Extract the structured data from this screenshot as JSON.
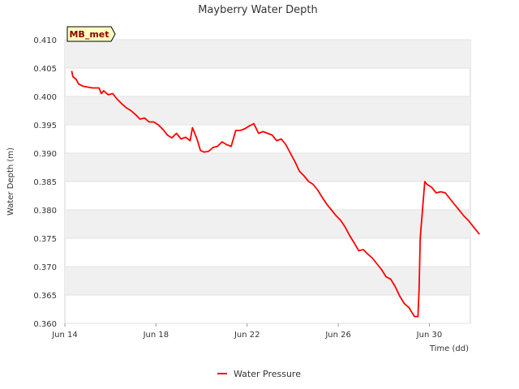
{
  "chart_data": {
    "type": "line",
    "title": "Mayberry Water Depth",
    "xlabel": "Time (dd)",
    "ylabel": "Water Depth (m)",
    "badge": "MB_met",
    "ylim": [
      0.36,
      0.41
    ],
    "yticks": [
      "0.360",
      "0.365",
      "0.370",
      "0.375",
      "0.380",
      "0.385",
      "0.390",
      "0.395",
      "0.400",
      "0.405",
      "0.410"
    ],
    "xlim": [
      14.0,
      31.8
    ],
    "xticks": [
      {
        "label": "Jun 14",
        "day": 14
      },
      {
        "label": "Jun 18",
        "day": 18
      },
      {
        "label": "Jun 22",
        "day": 22
      },
      {
        "label": "Jun 26",
        "day": 26
      },
      {
        "label": "Jun 30",
        "day": 30
      }
    ],
    "grid": "horizontal bands",
    "legend": "bottom-center",
    "series": [
      {
        "name": "Water Pressure",
        "color": "#ff0000",
        "points": [
          [
            14.3,
            0.4045
          ],
          [
            14.35,
            0.4035
          ],
          [
            14.5,
            0.403
          ],
          [
            14.6,
            0.4022
          ],
          [
            14.8,
            0.4018
          ],
          [
            15.2,
            0.4015
          ],
          [
            15.5,
            0.4015
          ],
          [
            15.6,
            0.4005
          ],
          [
            15.7,
            0.401
          ],
          [
            15.9,
            0.4003
          ],
          [
            16.1,
            0.4005
          ],
          [
            16.3,
            0.3995
          ],
          [
            16.5,
            0.3987
          ],
          [
            16.7,
            0.398
          ],
          [
            16.9,
            0.3975
          ],
          [
            17.1,
            0.3968
          ],
          [
            17.3,
            0.396
          ],
          [
            17.5,
            0.3962
          ],
          [
            17.7,
            0.3955
          ],
          [
            17.9,
            0.3955
          ],
          [
            18.1,
            0.395
          ],
          [
            18.3,
            0.3942
          ],
          [
            18.5,
            0.3932
          ],
          [
            18.7,
            0.3927
          ],
          [
            18.9,
            0.3935
          ],
          [
            19.1,
            0.3925
          ],
          [
            19.3,
            0.3928
          ],
          [
            19.5,
            0.3922
          ],
          [
            19.6,
            0.3945
          ],
          [
            19.8,
            0.3925
          ],
          [
            19.95,
            0.3905
          ],
          [
            20.1,
            0.3902
          ],
          [
            20.3,
            0.3903
          ],
          [
            20.5,
            0.391
          ],
          [
            20.7,
            0.3912
          ],
          [
            20.9,
            0.392
          ],
          [
            21.1,
            0.3915
          ],
          [
            21.3,
            0.3912
          ],
          [
            21.5,
            0.394
          ],
          [
            21.7,
            0.394
          ],
          [
            21.9,
            0.3943
          ],
          [
            22.1,
            0.3948
          ],
          [
            22.3,
            0.3952
          ],
          [
            22.5,
            0.3935
          ],
          [
            22.7,
            0.3938
          ],
          [
            22.9,
            0.3935
          ],
          [
            23.1,
            0.3932
          ],
          [
            23.3,
            0.3922
          ],
          [
            23.5,
            0.3925
          ],
          [
            23.7,
            0.3915
          ],
          [
            23.9,
            0.39
          ],
          [
            24.1,
            0.3885
          ],
          [
            24.3,
            0.3868
          ],
          [
            24.5,
            0.386
          ],
          [
            24.7,
            0.385
          ],
          [
            24.9,
            0.3845
          ],
          [
            25.1,
            0.3835
          ],
          [
            25.3,
            0.3822
          ],
          [
            25.5,
            0.381
          ],
          [
            25.7,
            0.38
          ],
          [
            25.9,
            0.379
          ],
          [
            26.1,
            0.3782
          ],
          [
            26.3,
            0.377
          ],
          [
            26.5,
            0.3755
          ],
          [
            26.7,
            0.3742
          ],
          [
            26.9,
            0.3728
          ],
          [
            27.1,
            0.373
          ],
          [
            27.3,
            0.3722
          ],
          [
            27.5,
            0.3715
          ],
          [
            27.7,
            0.3705
          ],
          [
            27.9,
            0.3695
          ],
          [
            28.1,
            0.3682
          ],
          [
            28.3,
            0.3678
          ],
          [
            28.5,
            0.3665
          ],
          [
            28.7,
            0.3648
          ],
          [
            28.9,
            0.3635
          ],
          [
            29.1,
            0.3628
          ],
          [
            29.3,
            0.3615
          ],
          [
            29.35,
            0.3612
          ],
          [
            29.5,
            0.3612
          ],
          [
            29.55,
            0.366
          ],
          [
            29.6,
            0.375
          ],
          [
            29.7,
            0.38
          ],
          [
            29.8,
            0.385
          ],
          [
            29.9,
            0.3845
          ],
          [
            30.1,
            0.384
          ],
          [
            30.3,
            0.383
          ],
          [
            30.5,
            0.3832
          ],
          [
            30.7,
            0.383
          ],
          [
            30.9,
            0.382
          ],
          [
            31.1,
            0.381
          ],
          [
            31.3,
            0.38
          ],
          [
            31.5,
            0.379
          ],
          [
            31.7,
            0.3782
          ],
          [
            31.9,
            0.3772
          ],
          [
            32.1,
            0.3762
          ],
          [
            32.2,
            0.3757
          ]
        ]
      }
    ]
  }
}
